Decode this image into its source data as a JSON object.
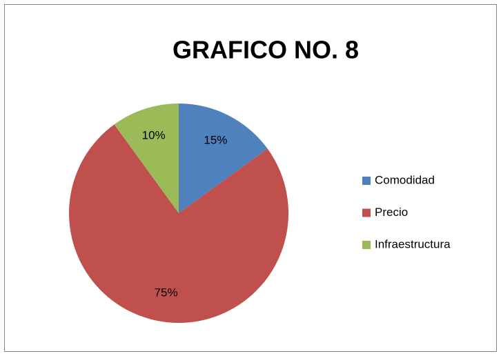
{
  "chart_data": {
    "type": "pie",
    "title": "GRAFICO NO. 8",
    "categories": [
      "Comodidad",
      "Precio",
      "Infraestructura"
    ],
    "values": [
      15,
      75,
      10
    ],
    "value_labels": [
      "15%",
      "75%",
      "10%"
    ],
    "colors": [
      "#4f81bd",
      "#c0504d",
      "#9bbb59"
    ],
    "legend": "right"
  }
}
